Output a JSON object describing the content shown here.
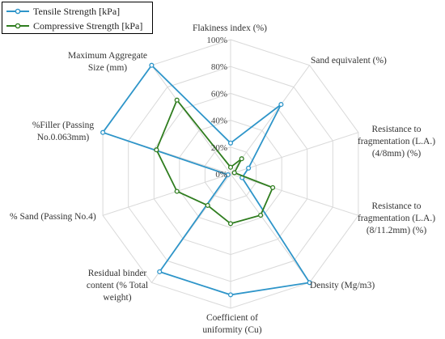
{
  "chart_data": {
    "type": "radar",
    "title": "",
    "axes": [
      "Flakiness index (%)",
      "Sand equivalent (%)",
      "Resistance to fragmentation (L.A.) (4/8mm) (%)",
      "Resistance to fragmentation (L.A.) (8/11.2mm) (%)",
      "Density (Mg/m3)",
      "Coefficient of uniformity (Cu)",
      "Residual binder content (% Total weight)",
      "% Sand (Passing No.4)",
      "%Filler (Passing No.0.063mm)",
      "Maximum Aggregate Size  (mm)"
    ],
    "ticks": [
      "0%",
      "20%",
      "40%",
      "60%",
      "80%",
      "100%"
    ],
    "tick_values": [
      0,
      20,
      40,
      60,
      80,
      100
    ],
    "range": [
      0,
      100
    ],
    "grid": true,
    "legend_position": "top-left",
    "series": [
      {
        "name": "Tensile Strength  [kPa]",
        "color": "#2e95c9",
        "values": [
          23,
          64,
          14,
          9,
          100,
          90,
          90,
          2,
          100,
          100
        ]
      },
      {
        "name": "Compressive Strength  [kPa]",
        "color": "#2f7d1f",
        "values": [
          5,
          14,
          3,
          33,
          38,
          37,
          29,
          42,
          58,
          68
        ]
      }
    ]
  }
}
